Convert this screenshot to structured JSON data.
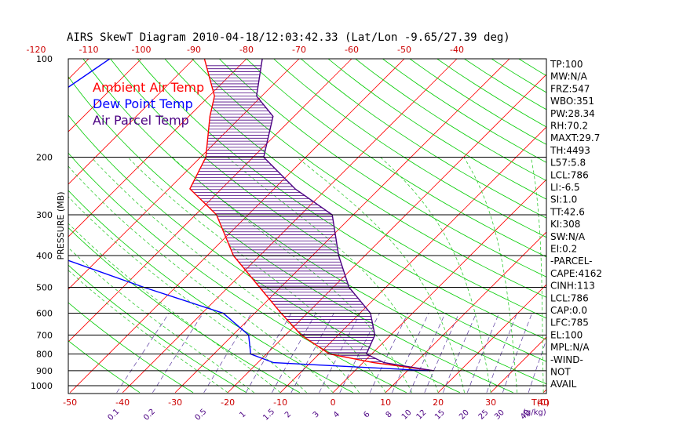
{
  "title": "AIRS SkewT Diagram 2010-04-18/12:03:42.33 (Lat/Lon -9.65/27.39 deg)",
  "legend": [
    {
      "label": "Ambient Air Temp",
      "color": "#ff0000"
    },
    {
      "label": "Dew Point Temp",
      "color": "#0000ff"
    },
    {
      "label": "Air Parcel Temp",
      "color": "#4b0082"
    }
  ],
  "chart_data": {
    "type": "line",
    "title": "AIRS SkewT Diagram 2010-04-18/12:03:42.33 (Lat/Lon -9.65/27.39 deg)",
    "ylabel": "PRESSURE (MB)",
    "xlabel": "T(C)",
    "mixing_ratio_label": "(g/kg)",
    "y_scale": "log",
    "ylim": [
      1050,
      100
    ],
    "pressure_ticks": [
      100,
      200,
      300,
      400,
      500,
      600,
      700,
      800,
      900,
      1000
    ],
    "top_temp_ticks": [
      -120,
      -110,
      -100,
      -90,
      -80,
      -70,
      -60,
      -50,
      -40
    ],
    "bottom_temp_ticks": [
      -50,
      -40,
      -30,
      -20,
      -10,
      0,
      10,
      20,
      30,
      40
    ],
    "mixing_ratio_ticks": [
      "0.1",
      "0.2",
      "0.5",
      "1",
      "1.5",
      "2",
      "3",
      "4",
      "6",
      "8",
      "10",
      "12",
      "15",
      "20",
      "25",
      "30",
      "40"
    ],
    "series": [
      {
        "name": "Ambient Air Temp",
        "color": "#ff0000",
        "points": [
          [
            -88,
            100
          ],
          [
            -79,
            130
          ],
          [
            -76,
            150
          ],
          [
            -69,
            200
          ],
          [
            -66,
            250
          ],
          [
            -56,
            300
          ],
          [
            -45,
            400
          ],
          [
            -34,
            500
          ],
          [
            -25,
            600
          ],
          [
            -17,
            700
          ],
          [
            -8,
            800
          ],
          [
            2,
            850
          ],
          [
            15,
            900
          ]
        ]
      },
      {
        "name": "Dew Point Temp",
        "color": "#0000ff",
        "points": [
          [
            -106,
            100
          ],
          [
            -111,
            150
          ],
          [
            -120,
            200
          ],
          [
            -123,
            250
          ],
          [
            -108,
            300
          ],
          [
            -79,
            400
          ],
          [
            -56,
            500
          ],
          [
            -36,
            600
          ],
          [
            -27,
            700
          ],
          [
            -23,
            800
          ],
          [
            -17,
            850
          ],
          [
            14,
            900
          ]
        ]
      },
      {
        "name": "Air Parcel Temp",
        "color": "#4b0082",
        "points": [
          [
            -77,
            100
          ],
          [
            -71,
            130
          ],
          [
            -64,
            150
          ],
          [
            -58,
            200
          ],
          [
            -46,
            250
          ],
          [
            -34,
            300
          ],
          [
            -25,
            400
          ],
          [
            -17,
            500
          ],
          [
            -8,
            600
          ],
          [
            -3,
            700
          ],
          [
            -1,
            800
          ],
          [
            4,
            850
          ],
          [
            15,
            900
          ]
        ]
      }
    ]
  },
  "indices": [
    "TP:100",
    "MW:N/A",
    "FRZ:547",
    "WBO:351",
    "PW:28.34",
    "RH:70.2",
    "MAXT:29.7",
    "TH:4493",
    "L57:5.8",
    "LCL:786",
    "LI:-6.5",
    "SI:1.0",
    "TT:42.6",
    "KI:308",
    "SW:N/A",
    "EI:0.2",
    "-PARCEL-",
    "CAPE:4162",
    "CINH:113",
    "LCL:786",
    "CAP:0.0",
    "LFC:785",
    "EL:100",
    "MPL:N/A",
    "-WIND-",
    "NOT",
    "AVAIL"
  ]
}
